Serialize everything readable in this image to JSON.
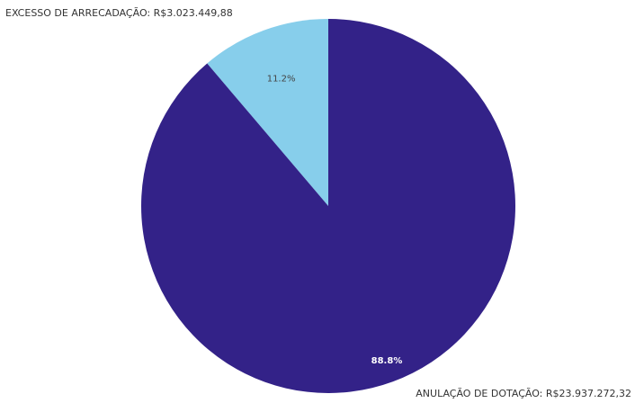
{
  "chart_data": {
    "type": "pie",
    "title": "",
    "slices": [
      {
        "label": "EXCESSO DE ARRECADAÇÃO",
        "value_text": "R$3.023.449,88",
        "value": 3023449.88,
        "percent": 11.2,
        "percent_label": "11.2%",
        "color": "#87CEEB"
      },
      {
        "label": "ANULAÇÃO DE DOTAÇÃO",
        "value_text": "R$23.937.272,32",
        "value": 23937272.32,
        "percent": 88.8,
        "percent_label": "88.8%",
        "color": "#332288"
      }
    ],
    "start_angle_deg": 0,
    "direction": "counterclockwise",
    "legend": "none"
  },
  "colors": {
    "background": "#ffffff",
    "label_text": "#333333",
    "percent_on_light": "#444444",
    "percent_on_dark": "#ffffff"
  }
}
